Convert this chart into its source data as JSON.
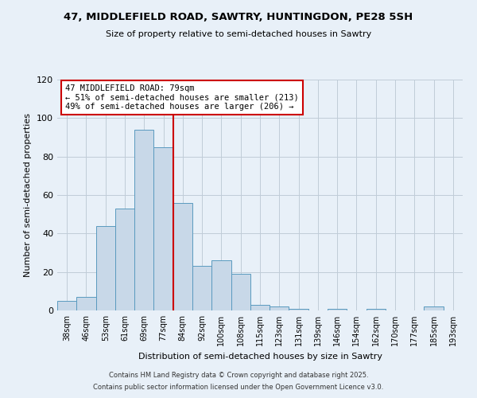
{
  "title": "47, MIDDLEFIELD ROAD, SAWTRY, HUNTINGDON, PE28 5SH",
  "subtitle": "Size of property relative to semi-detached houses in Sawtry",
  "xlabel": "Distribution of semi-detached houses by size in Sawtry",
  "ylabel": "Number of semi-detached properties",
  "bin_labels": [
    "38sqm",
    "46sqm",
    "53sqm",
    "61sqm",
    "69sqm",
    "77sqm",
    "84sqm",
    "92sqm",
    "100sqm",
    "108sqm",
    "115sqm",
    "123sqm",
    "131sqm",
    "139sqm",
    "146sqm",
    "154sqm",
    "162sqm",
    "170sqm",
    "177sqm",
    "185sqm",
    "193sqm"
  ],
  "bar_heights": [
    5,
    7,
    44,
    53,
    94,
    85,
    56,
    23,
    26,
    19,
    3,
    2,
    1,
    0,
    1,
    0,
    1,
    0,
    0,
    2,
    0
  ],
  "bar_color": "#c8d8e8",
  "bar_edge_color": "#5a9abf",
  "vline_x": 5.5,
  "vline_color": "#cc0000",
  "ylim": [
    0,
    120
  ],
  "yticks": [
    0,
    20,
    40,
    60,
    80,
    100,
    120
  ],
  "annotation_title": "47 MIDDLEFIELD ROAD: 79sqm",
  "annotation_line2": "← 51% of semi-detached houses are smaller (213)",
  "annotation_line3": "49% of semi-detached houses are larger (206) →",
  "annotation_box_color": "#ffffff",
  "annotation_box_edge": "#cc0000",
  "bg_color": "#e8f0f8",
  "grid_color": "#c0ccd8",
  "footer1": "Contains HM Land Registry data © Crown copyright and database right 2025.",
  "footer2": "Contains public sector information licensed under the Open Government Licence v3.0."
}
